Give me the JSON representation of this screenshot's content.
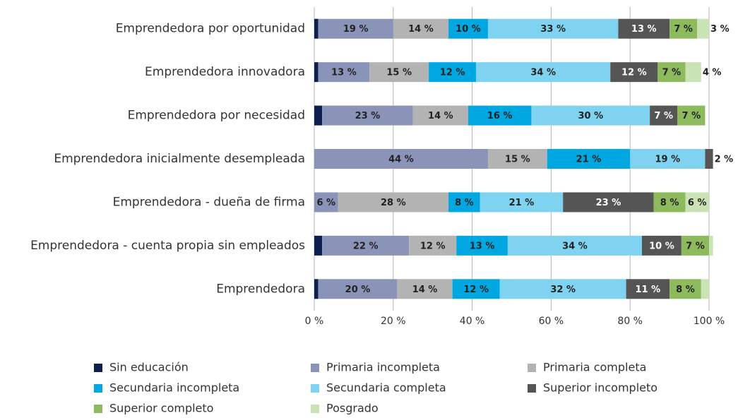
{
  "chart_data": {
    "type": "stacked-bar-horizontal",
    "categories": [
      "Emprendedora por oportunidad",
      "Emprendedora innovadora",
      "Emprendedora por necesidad",
      "Emprendedora inicialmente desempleada",
      "Emprendedora - dueña de firma",
      "Emprendedora - cuenta propia sin empleados",
      "Emprendedora"
    ],
    "series": [
      {
        "name": "Sin educación",
        "color": "#0d1f4f",
        "values": [
          1,
          1,
          2,
          0,
          0,
          2,
          1
        ],
        "value_labels": [
          null,
          null,
          null,
          null,
          null,
          null,
          null
        ]
      },
      {
        "name": "Primaria incompleta",
        "color": "#8a93b8",
        "values": [
          19,
          13,
          23,
          44,
          6,
          22,
          20
        ],
        "value_labels": [
          "19 %",
          "13 %",
          "23 %",
          "44 %",
          "6 %",
          "22 %",
          "20 %"
        ]
      },
      {
        "name": "Primaria completa",
        "color": "#b3b3b3",
        "values": [
          14,
          15,
          14,
          15,
          28,
          12,
          14
        ],
        "value_labels": [
          "14 %",
          "15 %",
          "14 %",
          "15 %",
          "28 %",
          "12 %",
          "14 %"
        ]
      },
      {
        "name": "Secundaria incompleta",
        "color": "#00a7e1",
        "values": [
          10,
          12,
          16,
          21,
          8,
          13,
          12
        ],
        "value_labels": [
          "10 %",
          "12 %",
          "16 %",
          "21 %",
          "8 %",
          "13 %",
          "12 %"
        ]
      },
      {
        "name": "Secundaria completa",
        "color": "#7fd3f0",
        "values": [
          33,
          34,
          30,
          19,
          21,
          34,
          32
        ],
        "value_labels": [
          "33 %",
          "34 %",
          "30 %",
          "19 %",
          "21 %",
          "34 %",
          "32 %"
        ]
      },
      {
        "name": "Superior incompleto",
        "color": "#555555",
        "values": [
          13,
          12,
          7,
          2,
          23,
          10,
          11
        ],
        "value_labels": [
          "13 %",
          "12 %",
          "7 %",
          "2 %",
          "23 %",
          "10 %",
          "11 %"
        ]
      },
      {
        "name": "Superior completo",
        "color": "#8dba5d",
        "values": [
          7,
          7,
          7,
          0,
          8,
          7,
          8
        ],
        "value_labels": [
          "7 %",
          "7 %",
          "7 %",
          null,
          "8 %",
          "7 %",
          "8 %"
        ]
      },
      {
        "name": "Posgrado",
        "color": "#c9e3b4",
        "values": [
          3,
          4,
          0,
          0,
          6,
          1,
          2
        ],
        "value_labels": [
          "3 %",
          "4 %",
          null,
          null,
          "6 %",
          null,
          null
        ]
      }
    ],
    "xlim": [
      0,
      100
    ],
    "xticks": [
      {
        "value": 0,
        "label": "0 %"
      },
      {
        "value": 20,
        "label": "20 %"
      },
      {
        "value": 40,
        "label": "40 %"
      },
      {
        "value": 60,
        "label": "60 %"
      },
      {
        "value": 80,
        "label": "80 %"
      },
      {
        "value": 100,
        "label": "100 %"
      }
    ],
    "grid": true
  }
}
